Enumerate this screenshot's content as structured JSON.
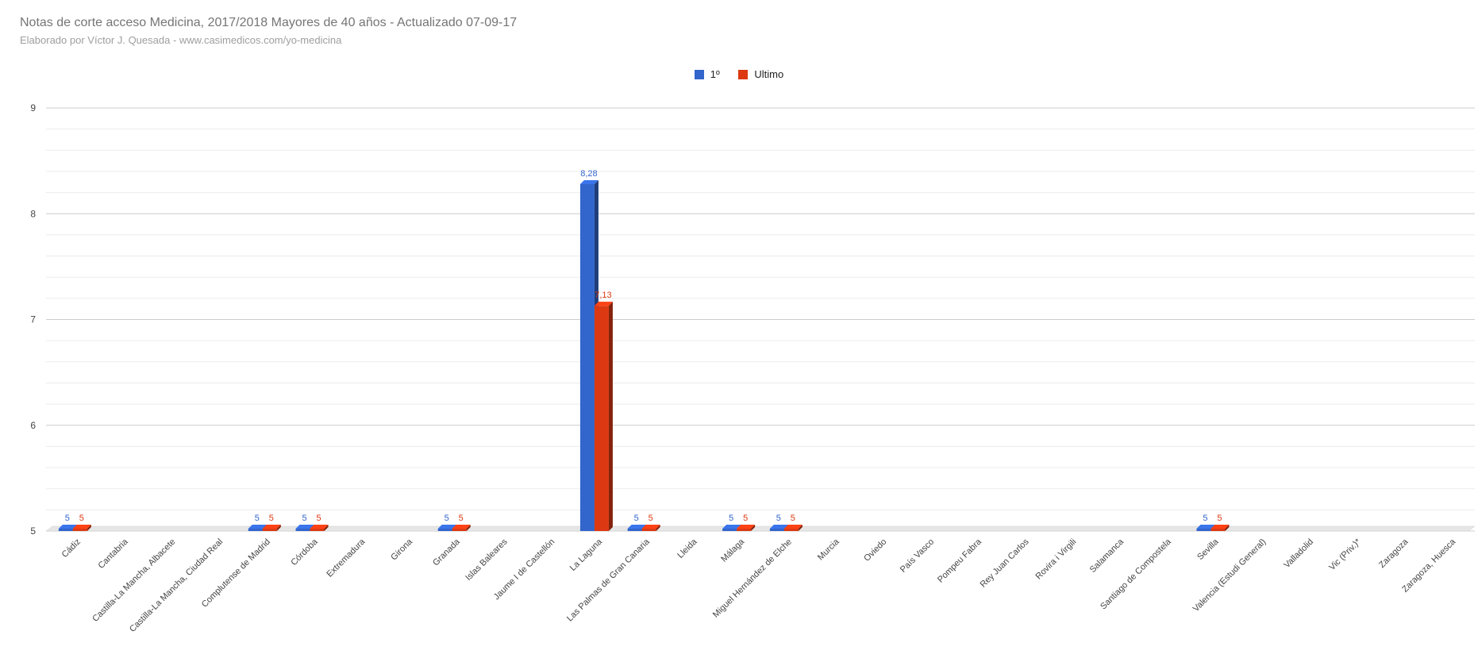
{
  "chart_data": {
    "type": "bar",
    "title": "Notas de corte acceso Medicina, 2017/2018 Mayores de 40 años - Actualizado 07-09-17",
    "subtitle": "Elaborado por Víctor J. Quesada - www.casimedicos.com/yo-medicina",
    "xlabel": "",
    "ylabel": "",
    "ylim": [
      5,
      9
    ],
    "yticks": [
      "9",
      "8",
      "7",
      "6",
      "5"
    ],
    "grid": true,
    "legend_position": "top",
    "categories": [
      "Cádiz",
      "Cantabria",
      "Castilla-La Mancha, Albacete",
      "Castilla-La Mancha, Ciudad Real",
      "Complutense de Madrid",
      "Córdoba",
      "Extremadura",
      "Girona",
      "Granada",
      "Islas Baleares",
      "Jaume I de Castellón",
      "La Laguna",
      "Las Palmas de Gran Canaria",
      "Lleida",
      "Málaga",
      "Miguel Hernández de Elche",
      "Murcia",
      "Oviedo",
      "País Vasco",
      "Pompeu Fabra",
      "Rey Juan Carlos",
      "Rovira i Virgili",
      "Salamanca",
      "Santiago de Compostela",
      "Sevilla",
      "Valencia (Estudi General)",
      "Valladolid",
      "Vic (Priv.)*",
      "Zaragoza",
      "Zaragoza, Huesca"
    ],
    "series": [
      {
        "name": "1º",
        "color": "#3366cc",
        "values": [
          5,
          null,
          null,
          null,
          5,
          5,
          null,
          null,
          5,
          null,
          null,
          8.28,
          5,
          null,
          5,
          5,
          null,
          null,
          null,
          null,
          null,
          null,
          null,
          null,
          5,
          null,
          null,
          null,
          null,
          null
        ],
        "labels": [
          "5",
          "",
          "",
          "",
          "5",
          "5",
          "",
          "",
          "5",
          "",
          "",
          "8,28",
          "5",
          "",
          "5",
          "5",
          "",
          "",
          "",
          "",
          "",
          "",
          "",
          "",
          "5",
          "",
          "",
          "",
          "",
          ""
        ]
      },
      {
        "name": "Ultimo",
        "color": "#dc3912",
        "values": [
          5,
          null,
          null,
          null,
          5,
          5,
          null,
          null,
          5,
          null,
          null,
          7.13,
          5,
          null,
          5,
          5,
          null,
          null,
          null,
          null,
          null,
          null,
          null,
          null,
          5,
          null,
          null,
          null,
          null,
          null
        ],
        "labels": [
          "5",
          "",
          "",
          "",
          "5",
          "5",
          "",
          "",
          "5",
          "",
          "",
          "7,13",
          "5",
          "",
          "5",
          "5",
          "",
          "",
          "",
          "",
          "",
          "",
          "",
          "",
          "5",
          "",
          "",
          "",
          "",
          ""
        ]
      }
    ]
  }
}
